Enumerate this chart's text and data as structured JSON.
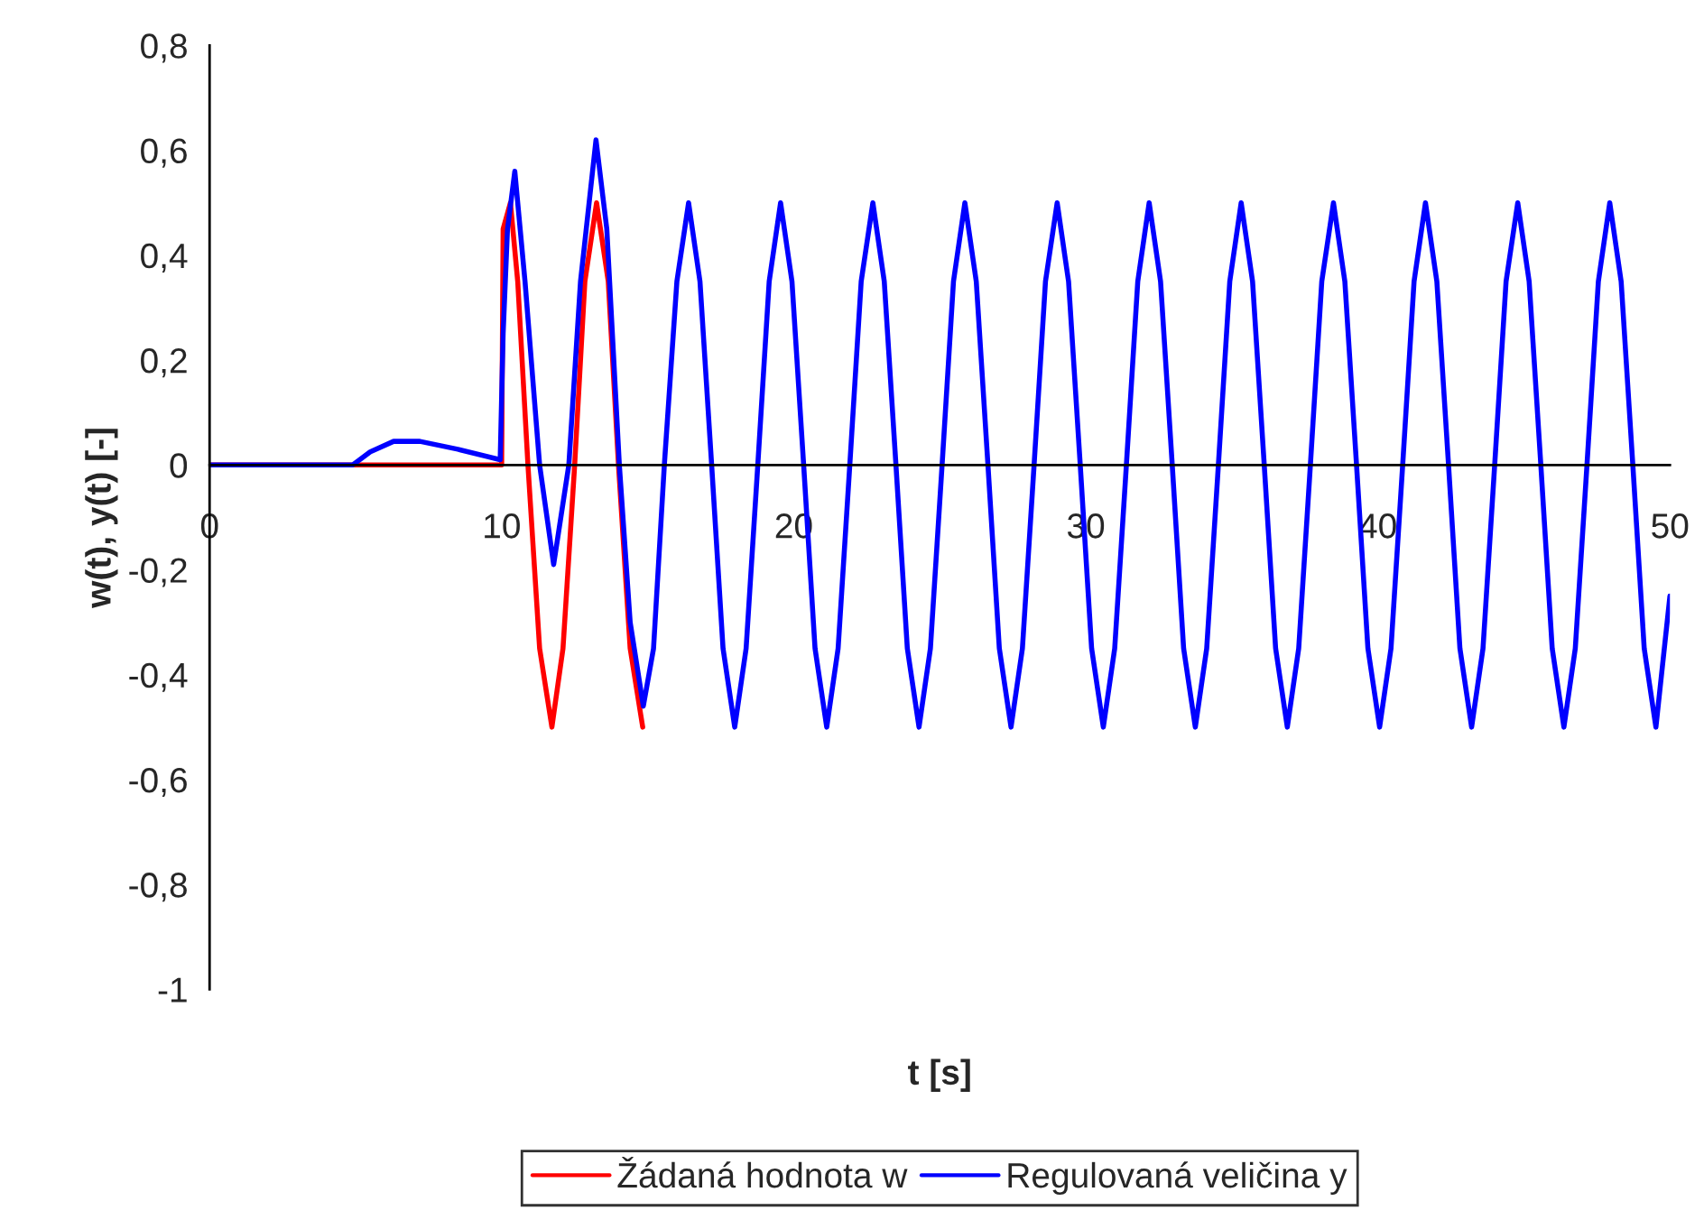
{
  "chart_data": {
    "type": "line",
    "xlabel": "t [s]",
    "ylabel": "w(t), y(t) [-]",
    "xlim": [
      0,
      50
    ],
    "xticks": [
      0,
      10,
      20,
      30,
      40,
      50
    ],
    "ylim": [
      -1,
      0.8
    ],
    "yticks": [
      {
        "value": -1,
        "label": "-1"
      },
      {
        "value": -0.8,
        "label": "-0,8"
      },
      {
        "value": -0.6,
        "label": "-0,6"
      },
      {
        "value": -0.4,
        "label": "-0,4"
      },
      {
        "value": -0.2,
        "label": "-0,2"
      },
      0,
      {
        "value": 0.2,
        "label": "0,2"
      },
      {
        "value": 0.4,
        "label": "0,4"
      },
      {
        "value": 0.6,
        "label": "0,6"
      },
      {
        "value": 0.8,
        "label": "0,8"
      }
    ],
    "grid": false,
    "legend": "bottom",
    "marker": "none",
    "line_style": "solid",
    "series": [
      {
        "name": "Žádaná hodnota w",
        "color": "#ff0000",
        "x": [
          0,
          10,
          10.05,
          10.3,
          10.55,
          10.9,
          11.3,
          11.72,
          12.1,
          12.5,
          12.85,
          13.25,
          13.65,
          14.0,
          14.4,
          14.83
        ],
        "values": [
          0,
          0,
          0.45,
          0.5,
          0.35,
          0,
          -0.35,
          -0.5,
          -0.35,
          0,
          0.35,
          0.5,
          0.35,
          0,
          -0.35,
          -0.5
        ]
      },
      {
        "name": "Regulovaná veličina y",
        "color": "#0000ff",
        "x": [
          0,
          4.9,
          5.5,
          6.3,
          7.2,
          8.5,
          9.95,
          10.05,
          10.2,
          10.45,
          10.8,
          11.3,
          11.78,
          12.3,
          12.7,
          13.23,
          13.6,
          14.03,
          14.4,
          14.85,
          15.2,
          15.57,
          16.0,
          16.4,
          16.79,
          17.19,
          17.58,
          17.98,
          18.37,
          18.77,
          19.16,
          19.55,
          19.94,
          20.34,
          20.73,
          21.13,
          21.52,
          21.92,
          22.31,
          22.71,
          23.1,
          23.5,
          23.89,
          24.29,
          24.68,
          25.08,
          25.47,
          25.86,
          26.25,
          26.65,
          27.04,
          27.44,
          27.83,
          28.23,
          28.62,
          29.02,
          29.41,
          29.81,
          30.2,
          30.6,
          30.99,
          31.39,
          31.78,
          32.17,
          32.56,
          32.96,
          33.35,
          33.75,
          34.14,
          34.54,
          34.93,
          35.32,
          35.71,
          36.11,
          36.5,
          36.9,
          37.29,
          37.69,
          38.08,
          38.48,
          38.87,
          39.27,
          39.66,
          40.06,
          40.45,
          40.85,
          41.24,
          41.63,
          42.02,
          42.42,
          42.81,
          43.21,
          43.6,
          44.0,
          44.39,
          44.79,
          45.18,
          45.58,
          45.97,
          46.37,
          46.76,
          47.16,
          47.55,
          47.94,
          48.33,
          48.73,
          49.12,
          49.52,
          50.0
        ],
        "values": [
          0,
          0,
          0.025,
          0.045,
          0.045,
          0.03,
          0.01,
          0.25,
          0.45,
          0.56,
          0.35,
          0,
          -0.19,
          0,
          0.35,
          0.62,
          0.45,
          0,
          -0.3,
          -0.46,
          -0.35,
          0,
          0.35,
          0.5,
          0.35,
          0,
          -0.35,
          -0.5,
          -0.35,
          0,
          0.35,
          0.5,
          0.35,
          0,
          -0.35,
          -0.5,
          -0.35,
          0,
          0.35,
          0.5,
          0.35,
          0,
          -0.35,
          -0.5,
          -0.35,
          0,
          0.35,
          0.5,
          0.35,
          0,
          -0.35,
          -0.5,
          -0.35,
          0,
          0.35,
          0.5,
          0.35,
          0,
          -0.35,
          -0.5,
          -0.35,
          0,
          0.35,
          0.5,
          0.35,
          0,
          -0.35,
          -0.5,
          -0.35,
          0,
          0.35,
          0.5,
          0.35,
          0,
          -0.35,
          -0.5,
          -0.35,
          0,
          0.35,
          0.5,
          0.35,
          0,
          -0.35,
          -0.5,
          -0.35,
          0,
          0.35,
          0.5,
          0.35,
          0,
          -0.35,
          -0.5,
          -0.35,
          0,
          0.35,
          0.5,
          0.35,
          0,
          -0.35,
          -0.5,
          -0.35,
          0,
          0.35,
          0.5,
          0.35,
          0,
          -0.35,
          -0.5,
          -0.25
        ]
      }
    ]
  }
}
